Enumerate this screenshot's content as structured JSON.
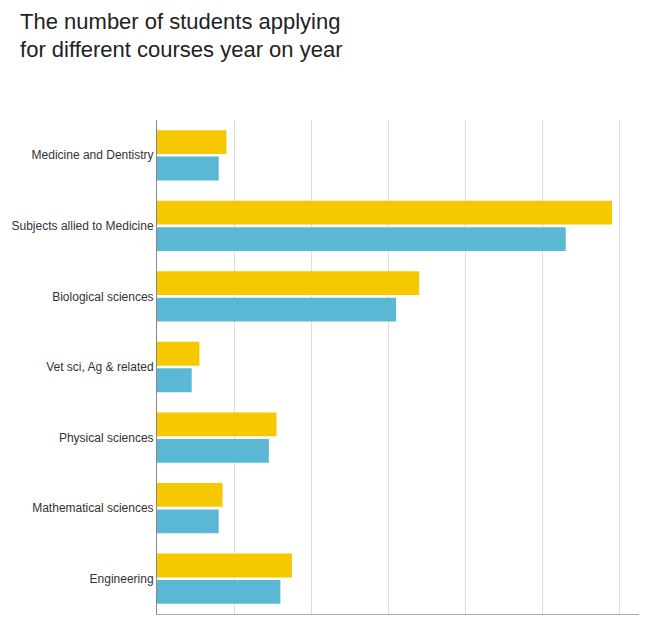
{
  "chart_data": {
    "type": "bar",
    "title": "The number of students applying\nfor different courses year on year",
    "orientation": "horizontal",
    "categories": [
      "Medicine and Dentistry",
      "Subjects allied to Medicine",
      "Biological sciences",
      "Vet sci, Ag & related",
      "Physical sciences",
      "Mathematical sciences",
      "Engineering"
    ],
    "series": [
      {
        "color": "#F5C800",
        "values": [
          90,
          590,
          340,
          55,
          155,
          85,
          175
        ]
      },
      {
        "color": "#5BB8D4",
        "values": [
          80,
          530,
          310,
          45,
          145,
          80,
          160
        ]
      }
    ],
    "xlim": [
      0,
      625
    ],
    "xticks": [
      0,
      100,
      200,
      300,
      400,
      500,
      600
    ],
    "grid": true,
    "tick_labels": "y"
  }
}
